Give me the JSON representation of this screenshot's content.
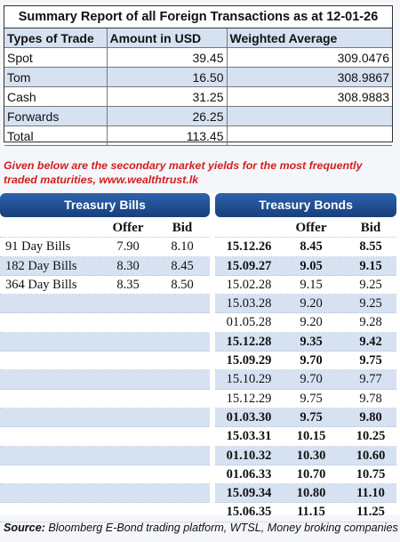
{
  "summary": {
    "title": "Summary Report of all Foreign Transactions as at 12-01-26",
    "headers": [
      "Types of Trade",
      "Amount in USD",
      "Weighted Average"
    ],
    "rows": [
      {
        "type": "Spot",
        "amount": "39.45",
        "avg": "309.0476"
      },
      {
        "type": "Tom",
        "amount": "16.50",
        "avg": "308.9867"
      },
      {
        "type": "Cash",
        "amount": "31.25",
        "avg": "308.9883"
      },
      {
        "type": "Forwards",
        "amount": "26.25",
        "avg": ""
      },
      {
        "type": "Total",
        "amount": "113.45",
        "avg": ""
      }
    ]
  },
  "intro": "Given below are the secondary market yields for the most frequently traded maturities, www.wealthtrust.lk",
  "yields": {
    "bills_title": "Treasury Bills",
    "bonds_title": "Treasury Bonds",
    "offer_label": "Offer",
    "bid_label": "Bid",
    "bills": [
      {
        "name": "91 Day Bills",
        "offer": "7.90",
        "bid": "8.10"
      },
      {
        "name": "182 Day Bills",
        "offer": "8.30",
        "bid": "8.45"
      },
      {
        "name": "364 Day Bills",
        "offer": "8.35",
        "bid": "8.50"
      }
    ],
    "bonds": [
      {
        "maturity": "15.12.26",
        "offer": "8.45",
        "bid": "8.55",
        "bold": true
      },
      {
        "maturity": "15.09.27",
        "offer": "9.05",
        "bid": "9.15",
        "bold": true
      },
      {
        "maturity": "15.02.28",
        "offer": "9.15",
        "bid": "9.25",
        "bold": false
      },
      {
        "maturity": "15.03.28",
        "offer": "9.20",
        "bid": "9.25",
        "bold": false
      },
      {
        "maturity": "01.05.28",
        "offer": "9.20",
        "bid": "9.28",
        "bold": false
      },
      {
        "maturity": "15.12.28",
        "offer": "9.35",
        "bid": "9.42",
        "bold": true
      },
      {
        "maturity": "15.09.29",
        "offer": "9.70",
        "bid": "9.75",
        "bold": true
      },
      {
        "maturity": "15.10.29",
        "offer": "9.70",
        "bid": "9.77",
        "bold": false
      },
      {
        "maturity": "15.12.29",
        "offer": "9.75",
        "bid": "9.78",
        "bold": false
      },
      {
        "maturity": "01.03.30",
        "offer": "9.75",
        "bid": "9.80",
        "bold": true
      },
      {
        "maturity": "15.03.31",
        "offer": "10.15",
        "bid": "10.25",
        "bold": true
      },
      {
        "maturity": "01.10.32",
        "offer": "10.30",
        "bid": "10.60",
        "bold": true
      },
      {
        "maturity": "01.06.33",
        "offer": "10.70",
        "bid": "10.75",
        "bold": true
      },
      {
        "maturity": "15.09.34",
        "offer": "10.80",
        "bid": "11.10",
        "bold": true
      },
      {
        "maturity": "15.06.35",
        "offer": "11.15",
        "bid": "11.25",
        "bold": true
      }
    ]
  },
  "source": {
    "label": "Source:",
    "text": " Bloomberg E-Bond trading platform, WTSL, Money broking companies"
  },
  "colors": {
    "accent_red": "#d21f1f",
    "band_blue": "#1f4f93",
    "shade": "#d6e2f2"
  }
}
